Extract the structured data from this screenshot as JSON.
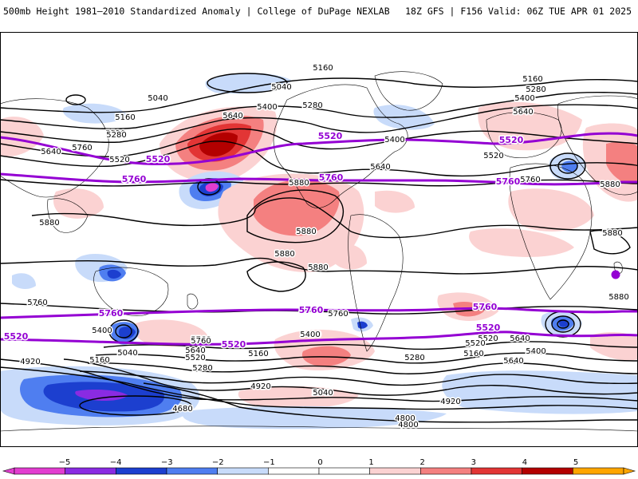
{
  "header": {
    "left": "500mb Height 1981–2010 Standardized Anomaly | College of DuPage NEXLAB",
    "right": "18Z GFS | F156 Valid: 06Z TUE APR 01 2025"
  },
  "colors": {
    "neg5": "#e23dd0",
    "neg4": "#8a2be2",
    "neg3": "#1c3fcf",
    "neg2": "#4f7ef0",
    "neg1": "#c8dbfa",
    "zero": "#ffffff",
    "pos1": "#fbd2d2",
    "pos2": "#f48080",
    "pos3": "#e23535",
    "pos4": "#b30000",
    "pos5": "#ffa500",
    "purple_contour": "#9400d3",
    "black_contour": "#000000"
  },
  "contour_labels": {
    "black": [
      "5160",
      "5040",
      "5040",
      "5160",
      "5280",
      "5400",
      "5280",
      "5640",
      "5640",
      "5520",
      "5760",
      "5880",
      "5400",
      "5160",
      "5280",
      "5400",
      "5640",
      "5520",
      "5520",
      "5640",
      "5760",
      "5880",
      "5880",
      "5880",
      "5880",
      "5880",
      "5880",
      "5880",
      "5760",
      "5760",
      "5760",
      "5400",
      "5040",
      "5160",
      "4920",
      "5640",
      "5520",
      "5280",
      "5760",
      "5160",
      "5400",
      "5520",
      "5640",
      "5400",
      "5520",
      "5160",
      "5640",
      "5400",
      "5040",
      "5280",
      "4800",
      "4920",
      "5040",
      "4680",
      "4920",
      "4800"
    ],
    "purple": [
      "5520",
      "5520",
      "5520",
      "5760",
      "5760",
      "5760",
      "5760",
      "5760",
      "5760",
      "5520",
      "5520",
      "5520"
    ]
  },
  "colorbar": {
    "ticks": [
      "−5",
      "−4",
      "−3",
      "−2",
      "−1",
      "0",
      "1",
      "2",
      "3",
      "4",
      "5"
    ]
  }
}
